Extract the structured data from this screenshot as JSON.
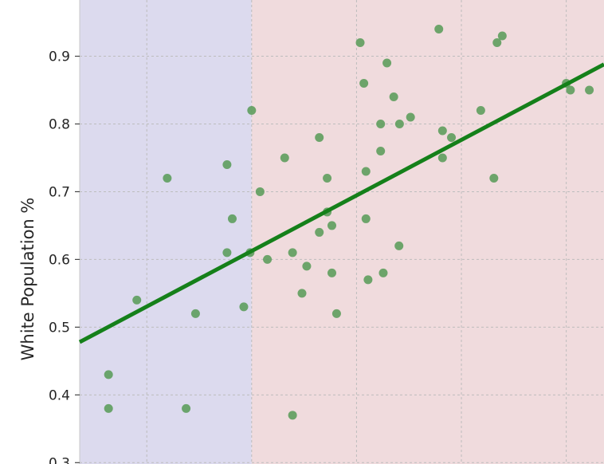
{
  "chart_data": {
    "type": "scatter",
    "title": "",
    "xlabel": "",
    "ylabel": "White Population %",
    "ylim": [
      0.298,
      0.983
    ],
    "xlim": [
      0,
      100
    ],
    "yticks": [
      0.3,
      0.4,
      0.5,
      0.6,
      0.7,
      0.8,
      0.9
    ],
    "ytick_labels": [
      "0.3",
      "0.4",
      "0.5",
      "0.6",
      "0.7",
      "0.8",
      "0.9"
    ],
    "x_gridlines": [
      12.8,
      32.8,
      52.8,
      72.8,
      92.8
    ],
    "grid": true,
    "regions": [
      {
        "x_from": 0,
        "x_to": 32.8,
        "color": "#dcdaee"
      },
      {
        "x_from": 32.8,
        "x_to": 100,
        "color": "#f0dbdd"
      }
    ],
    "points": {
      "color": "#5a9c5a",
      "x": [
        5.5,
        5.5,
        10.9,
        16.7,
        20.3,
        22.1,
        28.1,
        28.1,
        29.1,
        31.3,
        32.5,
        32.8,
        34.4,
        35.8,
        39.1,
        40.6,
        40.6,
        42.4,
        43.3,
        45.7,
        45.7,
        47.2,
        47.2,
        48.1,
        48.1,
        49.0,
        53.5,
        54.2,
        54.6,
        54.6,
        55.0,
        57.4,
        57.4,
        57.9,
        58.6,
        59.9,
        60.9,
        61.0,
        63.1,
        68.5,
        69.2,
        69.2,
        70.9,
        76.5,
        79.0,
        79.6,
        80.6,
        92.8,
        93.6,
        97.2
      ],
      "y": [
        0.43,
        0.38,
        0.54,
        0.72,
        0.38,
        0.52,
        0.61,
        0.74,
        0.66,
        0.53,
        0.61,
        0.82,
        0.7,
        0.6,
        0.75,
        0.61,
        0.37,
        0.55,
        0.59,
        0.64,
        0.78,
        0.72,
        0.67,
        0.65,
        0.58,
        0.52,
        0.92,
        0.86,
        0.73,
        0.66,
        0.57,
        0.76,
        0.8,
        0.58,
        0.89,
        0.84,
        0.62,
        0.8,
        0.81,
        0.94,
        0.79,
        0.75,
        0.78,
        0.82,
        0.72,
        0.92,
        0.93,
        0.86,
        0.85,
        0.85
      ]
    },
    "trendline": {
      "color": "#15801a",
      "x": [
        0,
        100
      ],
      "y": [
        0.478,
        0.888
      ]
    }
  }
}
